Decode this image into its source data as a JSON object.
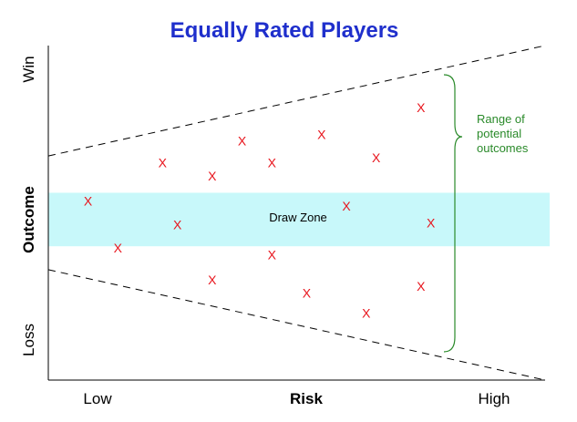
{
  "title": "Equally Rated Players",
  "x_axis": {
    "label": "Risk",
    "low_label": "Low",
    "high_label": "High"
  },
  "y_axis": {
    "label": "Outcome",
    "top_label": "Win",
    "bottom_label": "Loss"
  },
  "draw_zone_label": "Draw Zone",
  "brace_label": [
    "Range of",
    "potential",
    "outcomes"
  ],
  "marker_glyph": "X",
  "colors": {
    "title": "#1f2fcc",
    "marker": "#e8141c",
    "draw_zone": "#c8f8fa",
    "brace": "#2a8a2a",
    "axis": "#000000"
  },
  "chart_data": {
    "type": "scatter",
    "title": "Equally Rated Players",
    "xlabel": "Risk",
    "ylabel": "Outcome",
    "x_tick_labels": [
      "Low",
      "High"
    ],
    "y_tick_labels": [
      "Loss",
      "Win"
    ],
    "xlim": [
      0,
      1
    ],
    "ylim": [
      0,
      1
    ],
    "band": {
      "label": "Draw Zone",
      "y_range": [
        0.4,
        0.56
      ]
    },
    "envelope": {
      "upper": [
        [
          0,
          0.67
        ],
        [
          1,
          1.0
        ]
      ],
      "lower": [
        [
          0,
          0.33
        ],
        [
          1,
          0.0
        ]
      ]
    },
    "points": [
      {
        "x": 0.08,
        "y": 0.535
      },
      {
        "x": 0.14,
        "y": 0.395
      },
      {
        "x": 0.23,
        "y": 0.65
      },
      {
        "x": 0.26,
        "y": 0.465
      },
      {
        "x": 0.33,
        "y": 0.61
      },
      {
        "x": 0.33,
        "y": 0.3
      },
      {
        "x": 0.39,
        "y": 0.715
      },
      {
        "x": 0.45,
        "y": 0.65
      },
      {
        "x": 0.45,
        "y": 0.375
      },
      {
        "x": 0.52,
        "y": 0.26
      },
      {
        "x": 0.55,
        "y": 0.735
      },
      {
        "x": 0.6,
        "y": 0.52
      },
      {
        "x": 0.64,
        "y": 0.2
      },
      {
        "x": 0.66,
        "y": 0.665
      },
      {
        "x": 0.75,
        "y": 0.815
      },
      {
        "x": 0.75,
        "y": 0.28
      },
      {
        "x": 0.77,
        "y": 0.47
      }
    ]
  }
}
